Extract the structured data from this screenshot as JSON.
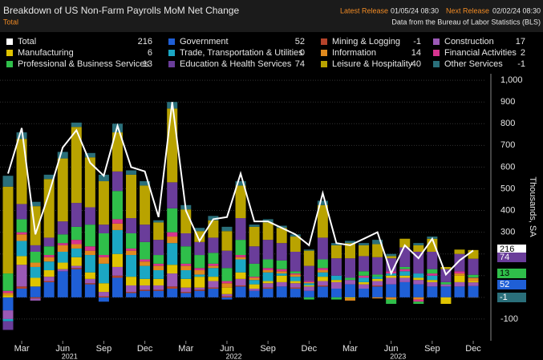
{
  "header": {
    "title": "Breakdown of US Non-Farm Payrolls MoM Net Change",
    "subtitle": "Total",
    "latest_label": "Latest Release",
    "latest_value": "01/05/24 08:30",
    "next_label": "Next Release",
    "next_value": "02/02/24 08:30",
    "source": "Data from the Bureau of Labor Statistics (BLS)"
  },
  "chart_data": {
    "type": "stacked-bar-line",
    "y_label": "Thousands, SA",
    "categories": [
      null,
      "Mar",
      null,
      null,
      "Jun",
      null,
      null,
      "Sep",
      null,
      null,
      "Dec",
      null,
      null,
      "Mar",
      null,
      null,
      "Jun",
      null,
      null,
      "Sep",
      null,
      null,
      "Dec",
      null,
      null,
      "Mar",
      null,
      null,
      "Jun",
      null,
      null,
      "Sep",
      null,
      null,
      "Dec"
    ],
    "years": [
      "2021",
      "2022",
      "2023"
    ],
    "ylim": [
      -200,
      1030
    ],
    "yticks": [
      -100,
      0,
      100,
      200,
      300,
      400,
      500,
      600,
      700,
      800,
      900,
      {
        "value": 1000,
        "label": "1,000"
      }
    ],
    "grid": true,
    "line": {
      "name": "Total",
      "color": "#ffffff",
      "values": [
        570,
        780,
        290,
        480,
        690,
        770,
        620,
        560,
        790,
        600,
        580,
        370,
        900,
        400,
        260,
        360,
        370,
        570,
        350,
        350,
        320,
        290,
        240,
        480,
        250,
        240,
        270,
        300,
        110,
        240,
        180,
        270,
        105,
        170,
        216
      ]
    },
    "series": [
      {
        "name": "Government",
        "color": "#1f5fd6",
        "values": [
          -60,
          40,
          50,
          70,
          120,
          130,
          60,
          -20,
          90,
          20,
          30,
          30,
          40,
          20,
          30,
          40,
          -10,
          50,
          30,
          40,
          50,
          40,
          30,
          50,
          40,
          60,
          40,
          50,
          60,
          70,
          60,
          50,
          50,
          50,
          52
        ]
      },
      {
        "name": "Mining & Logging",
        "color": "#b5432a",
        "values": [
          0,
          10,
          -5,
          5,
          0,
          5,
          5,
          5,
          10,
          5,
          5,
          5,
          10,
          5,
          5,
          5,
          5,
          5,
          0,
          5,
          0,
          5,
          0,
          5,
          0,
          0,
          0,
          5,
          0,
          0,
          0,
          0,
          0,
          0,
          -1
        ]
      },
      {
        "name": "Construction",
        "color": "#9b59b6",
        "values": [
          -40,
          100,
          -10,
          20,
          10,
          10,
          20,
          20,
          40,
          30,
          20,
          20,
          60,
          20,
          10,
          30,
          10,
          30,
          10,
          20,
          20,
          20,
          20,
          20,
          30,
          20,
          20,
          20,
          30,
          20,
          20,
          20,
          10,
          20,
          17
        ]
      },
      {
        "name": "Manufacturing",
        "color": "#e0c400",
        "values": [
          10,
          40,
          40,
          30,
          30,
          40,
          30,
          40,
          60,
          40,
          30,
          30,
          40,
          40,
          50,
          20,
          30,
          30,
          20,
          10,
          30,
          10,
          5,
          20,
          10,
          -5,
          10,
          10,
          10,
          10,
          10,
          10,
          -30,
          30,
          6
        ]
      },
      {
        "name": "Trade, Transportation & Utilities",
        "color": "#1ba7c4",
        "values": [
          -10,
          70,
          50,
          40,
          50,
          40,
          80,
          90,
          110,
          100,
          60,
          40,
          100,
          40,
          10,
          40,
          0,
          60,
          20,
          40,
          10,
          20,
          10,
          20,
          20,
          0,
          20,
          10,
          10,
          20,
          20,
          20,
          0,
          0,
          0
        ]
      },
      {
        "name": "Information",
        "color": "#e08a1e",
        "values": [
          10,
          30,
          20,
          20,
          30,
          20,
          20,
          30,
          30,
          20,
          20,
          20,
          30,
          20,
          20,
          10,
          20,
          10,
          10,
          10,
          10,
          10,
          5,
          10,
          0,
          -10,
          0,
          -5,
          -10,
          0,
          -10,
          0,
          0,
          10,
          14
        ]
      },
      {
        "name": "Financial Activities",
        "color": "#d6348f",
        "values": [
          10,
          10,
          0,
          10,
          10,
          20,
          20,
          10,
          20,
          10,
          10,
          10,
          20,
          10,
          10,
          10,
          10,
          10,
          5,
          10,
          10,
          5,
          5,
          10,
          0,
          0,
          10,
          0,
          10,
          10,
          -10,
          10,
          0,
          10,
          2
        ]
      },
      {
        "name": "Professional & Business Services",
        "color": "#2fbf4a",
        "values": [
          80,
          60,
          50,
          40,
          40,
          60,
          100,
          100,
          130,
          70,
          80,
          40,
          110,
          80,
          60,
          50,
          60,
          70,
          60,
          40,
          40,
          10,
          -10,
          40,
          -10,
          10,
          20,
          10,
          -20,
          10,
          -10,
          20,
          10,
          0,
          13
        ]
      },
      {
        "name": "Education & Health Services",
        "color": "#6a3d9a",
        "values": [
          -40,
          70,
          30,
          40,
          60,
          110,
          80,
          40,
          90,
          70,
          80,
          70,
          120,
          60,
          60,
          70,
          80,
          100,
          80,
          90,
          80,
          90,
          70,
          100,
          80,
          90,
          70,
          80,
          60,
          90,
          100,
          80,
          60,
          80,
          74
        ]
      },
      {
        "name": "Leisure & Hospitality",
        "color": "#b9a300",
        "values": [
          400,
          300,
          180,
          270,
          290,
          350,
          230,
          200,
          180,
          200,
          180,
          80,
          340,
          110,
          50,
          80,
          90,
          150,
          90,
          80,
          70,
          70,
          70,
          150,
          60,
          70,
          50,
          60,
          10,
          40,
          30,
          60,
          10,
          20,
          40
        ]
      },
      {
        "name": "Other Services",
        "color": "#2a6f7a",
        "values": [
          50,
          30,
          20,
          20,
          30,
          20,
          20,
          30,
          40,
          20,
          20,
          10,
          30,
          20,
          15,
          20,
          20,
          20,
          10,
          15,
          10,
          10,
          5,
          20,
          10,
          10,
          10,
          20,
          10,
          0,
          10,
          10,
          0,
          0,
          -1
        ]
      }
    ]
  }
}
